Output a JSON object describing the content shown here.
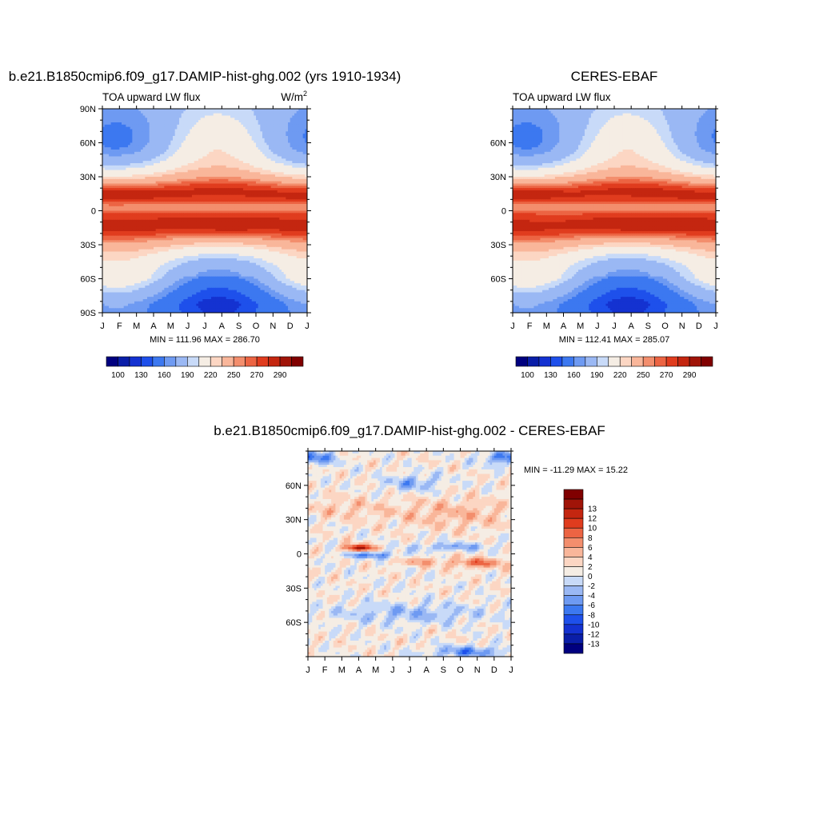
{
  "chart_data": [
    {
      "type": "heatmap",
      "title": "b.e21.B1850cmip6.f09_g17.DAMIP-hist-ghg.002 (yrs 1910-1934)",
      "subtitle_left": "TOA upward LW flux",
      "units": "W/m",
      "units_sup": "2",
      "stats": "MIN = 111.96 MAX = 286.70",
      "x_ticks": [
        "J",
        "F",
        "M",
        "A",
        "M",
        "J",
        "J",
        "A",
        "S",
        "O",
        "N",
        "D",
        "J"
      ],
      "y_ticks": [
        "90N",
        "60N",
        "30N",
        "0",
        "30S",
        "60S",
        "90S"
      ],
      "y_tick_values": [
        90,
        60,
        30,
        0,
        -30,
        -60,
        -90
      ],
      "xlim": [
        0,
        12
      ],
      "ylim": [
        -90,
        90
      ],
      "levels": [
        90,
        100,
        110,
        130,
        140,
        160,
        170,
        190,
        200,
        220,
        230,
        250,
        260,
        270,
        280,
        290,
        300
      ],
      "colorbar_labels": [
        "100",
        "130",
        "160",
        "190",
        "220",
        "250",
        "270",
        "290"
      ],
      "colorbar_label_values": [
        100,
        130,
        160,
        190,
        220,
        250,
        270,
        290
      ],
      "colorbar_orientation": "horizontal"
    },
    {
      "type": "heatmap",
      "title": "CERES-EBAF",
      "subtitle_left": "TOA upward LW flux",
      "stats": "MIN = 112.41 MAX = 285.07",
      "x_ticks": [
        "J",
        "F",
        "M",
        "A",
        "M",
        "J",
        "J",
        "A",
        "S",
        "O",
        "N",
        "D",
        "J"
      ],
      "y_ticks": [
        "60N",
        "30N",
        "0",
        "30S",
        "60S"
      ],
      "y_tick_values": [
        60,
        30,
        0,
        -30,
        -60
      ],
      "xlim": [
        0,
        12
      ],
      "ylim": [
        -90,
        90
      ],
      "levels": [
        90,
        100,
        110,
        130,
        140,
        160,
        170,
        190,
        200,
        220,
        230,
        250,
        260,
        270,
        280,
        290,
        300
      ],
      "colorbar_labels": [
        "100",
        "130",
        "160",
        "190",
        "220",
        "250",
        "270",
        "290"
      ],
      "colorbar_label_values": [
        100,
        130,
        160,
        190,
        220,
        250,
        270,
        290
      ],
      "colorbar_orientation": "horizontal"
    },
    {
      "type": "heatmap",
      "title": "b.e21.B1850cmip6.f09_g17.DAMIP-hist-ghg.002 - CERES-EBAF",
      "stats": "MIN = -11.29 MAX =  15.22",
      "x_ticks": [
        "J",
        "F",
        "M",
        "A",
        "M",
        "J",
        "J",
        "A",
        "S",
        "O",
        "N",
        "D",
        "J"
      ],
      "y_ticks": [
        "60N",
        "30N",
        "0",
        "30S",
        "60S"
      ],
      "y_tick_values": [
        60,
        30,
        0,
        -30,
        -60
      ],
      "xlim": [
        0,
        12
      ],
      "ylim": [
        -90,
        90
      ],
      "levels": [
        -14,
        -13,
        -12,
        -10,
        -8,
        -6,
        -4,
        -2,
        0,
        2,
        4,
        6,
        8,
        10,
        12,
        13,
        14
      ],
      "colorbar_labels": [
        "13",
        "12",
        "10",
        "8",
        "6",
        "4",
        "2",
        "0",
        "-2",
        "-4",
        "-6",
        "-8",
        "-10",
        "-12",
        "-13"
      ],
      "colorbar_label_values": [
        13,
        12,
        10,
        8,
        6,
        4,
        2,
        0,
        -2,
        -4,
        -6,
        -8,
        -10,
        -12,
        -13
      ],
      "colorbar_orientation": "vertical"
    }
  ],
  "palette": [
    "#00007f",
    "#0a1ea8",
    "#1432d1",
    "#1e50eb",
    "#3c78f0",
    "#6e9af2",
    "#9ab8f4",
    "#c8daf8",
    "#f5ede4",
    "#fcd6c3",
    "#f9b69a",
    "#f38e6d",
    "#ec6443",
    "#e03c1e",
    "#c42610",
    "#a01408",
    "#800000"
  ]
}
